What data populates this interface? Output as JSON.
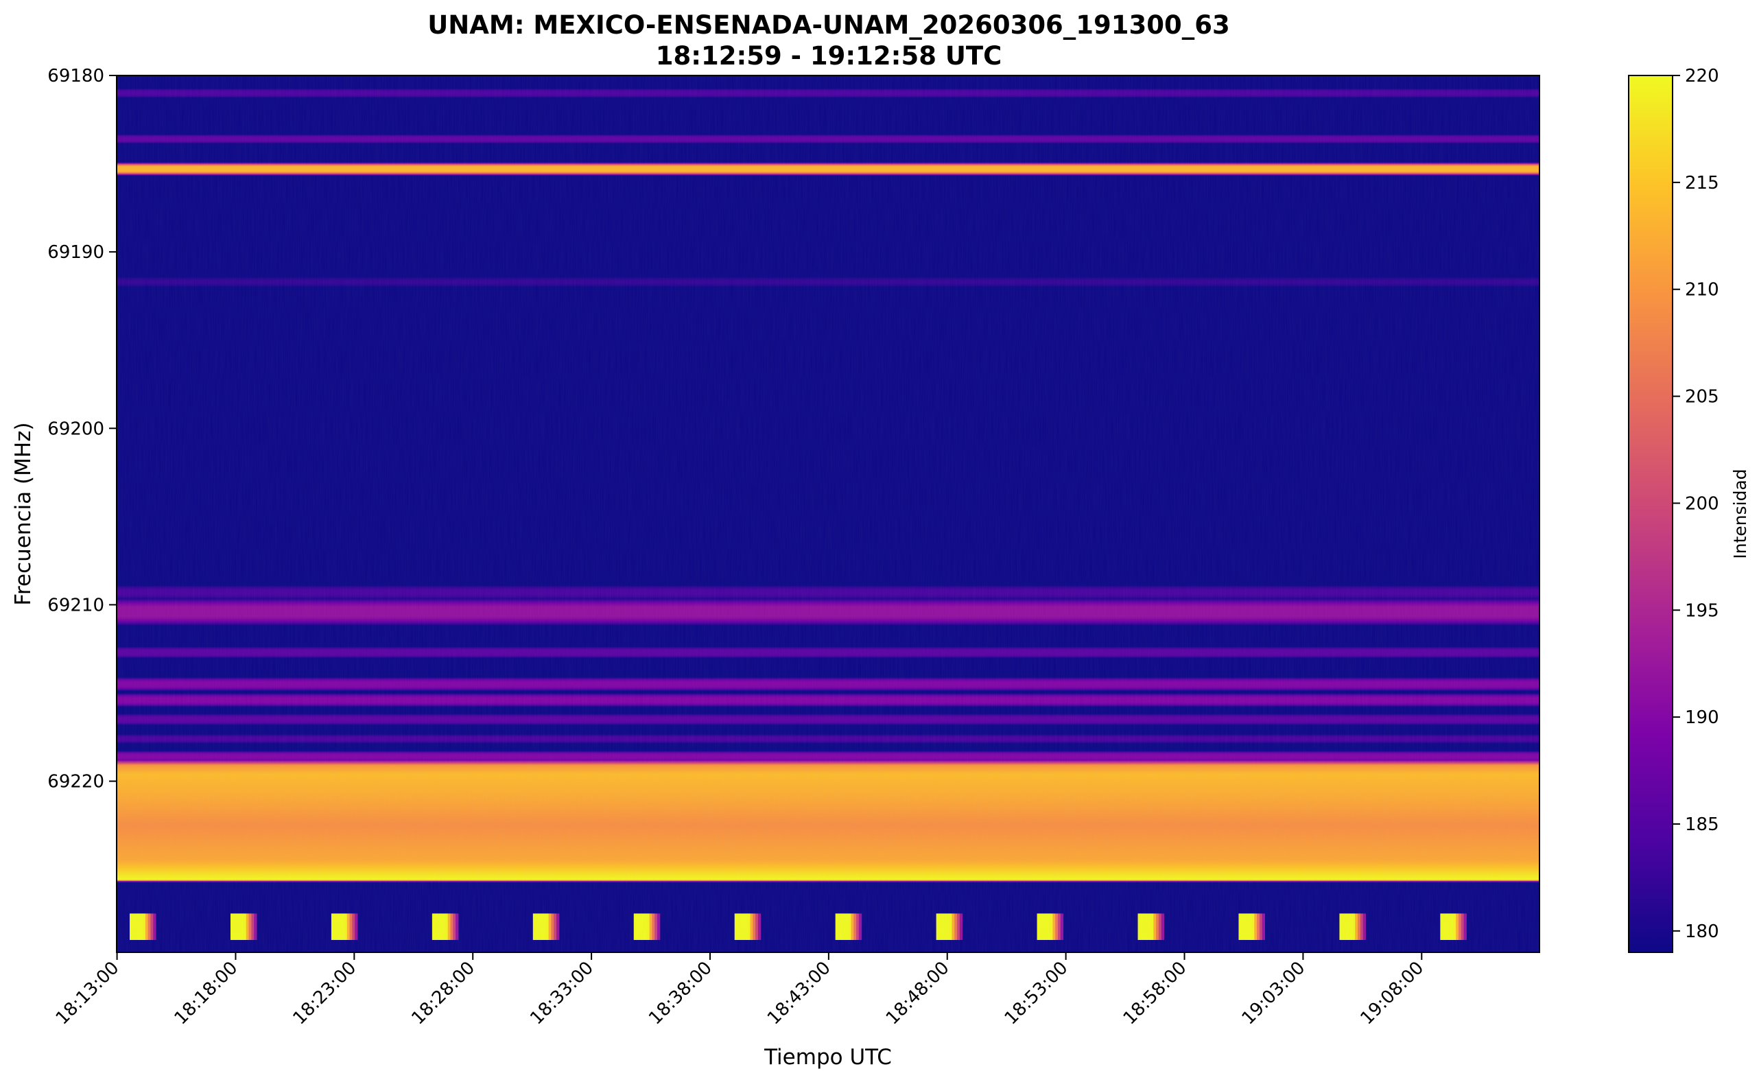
{
  "chart_data": {
    "type": "heatmap",
    "title": "UNAM: MEXICO-ENSENADA-UNAM_20260306_191300_63",
    "subtitle": "18:12:59 - 19:12:58 UTC",
    "xlabel": "Tiempo UTC",
    "ylabel": "Frecuencia (MHz)",
    "colorbar_label": "Intensidad",
    "colormap": "plasma",
    "x_ticks": [
      "18:13:00",
      "18:18:00",
      "18:23:00",
      "18:28:00",
      "18:33:00",
      "18:38:00",
      "18:43:00",
      "18:48:00",
      "18:53:00",
      "18:58:00",
      "19:03:00",
      "19:08:00"
    ],
    "x_tick_minutes": [
      0.0167,
      5.0167,
      10.0167,
      15.0167,
      20.0167,
      25.0167,
      30.0167,
      35.0167,
      40.0167,
      45.0167,
      50.0167,
      55.0167
    ],
    "x_range_minutes": [
      0,
      59.983
    ],
    "y_ticks": [
      "69180",
      "69190",
      "69200",
      "69210",
      "69220"
    ],
    "y_tick_values": [
      69180,
      69190,
      69200,
      69210,
      69220
    ],
    "ylim": [
      69180,
      69229.7
    ],
    "y_inverted": true,
    "colorbar_ticks": [
      "180",
      "185",
      "190",
      "195",
      "200",
      "205",
      "210",
      "215",
      "220"
    ],
    "colorbar_tick_values": [
      180,
      185,
      190,
      195,
      200,
      205,
      210,
      215,
      220
    ],
    "clim": [
      179,
      220
    ],
    "background_level": 180,
    "bands": [
      {
        "center": 69181.0,
        "half_width": 0.2,
        "peak": 184.5
      },
      {
        "center": 69183.6,
        "half_width": 0.2,
        "peak": 186.5
      },
      {
        "center": 69185.3,
        "half_width": 0.3,
        "peak": 214
      },
      {
        "center": 69191.7,
        "half_width": 0.2,
        "peak": 182
      },
      {
        "center": 69209.3,
        "half_width": 0.3,
        "peak": 184
      },
      {
        "center": 69210.4,
        "half_width": 0.6,
        "peak": 192
      },
      {
        "center": 69212.7,
        "half_width": 0.25,
        "peak": 186
      },
      {
        "center": 69214.5,
        "half_width": 0.3,
        "peak": 190
      },
      {
        "center": 69215.4,
        "half_width": 0.3,
        "peak": 190
      },
      {
        "center": 69216.5,
        "half_width": 0.25,
        "peak": 186
      },
      {
        "center": 69217.6,
        "half_width": 0.2,
        "peak": 184
      },
      {
        "center": 69218.6,
        "half_width": 0.25,
        "peak": 190
      }
    ],
    "strong_band": {
      "from": 69218.8,
      "to": 69225.7,
      "profile": [
        [
          69218.8,
          188
        ],
        [
          69219.1,
          210
        ],
        [
          69219.6,
          214
        ],
        [
          69221.0,
          212
        ],
        [
          69222.5,
          209
        ],
        [
          69224.5,
          212
        ],
        [
          69225.3,
          218
        ],
        [
          69225.6,
          220
        ],
        [
          69225.7,
          182
        ]
      ]
    },
    "pulses": {
      "start_minutes": [
        0.55,
        4.8,
        9.05,
        13.3,
        17.55,
        21.8,
        26.05,
        30.3,
        34.55,
        38.8,
        43.05,
        47.3,
        51.55,
        55.8
      ],
      "duration_minutes": 1.1,
      "freq_range": [
        69227.5,
        69229.0
      ],
      "peak": 220
    }
  }
}
